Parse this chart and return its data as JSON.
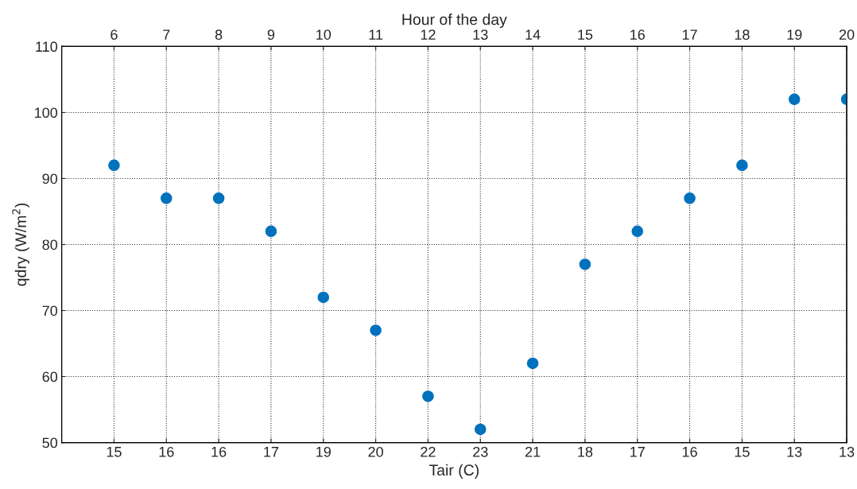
{
  "chart_data": {
    "type": "scatter",
    "xlabel": "Tair (C)",
    "x2label": "Hour of the day",
    "ylabel": "qdry (W/m$^{2}$)",
    "categories": [
      "15",
      "16",
      "16",
      "17",
      "19",
      "20",
      "22",
      "23",
      "21",
      "18",
      "17",
      "16",
      "15",
      "13",
      "13"
    ],
    "series": [
      {
        "color": "#0072bd",
        "values": [
          92,
          87,
          87,
          82,
          72,
          67,
          57,
          52,
          62,
          77,
          82,
          87,
          92,
          102,
          102
        ]
      }
    ],
    "x2lim": [
      5,
      20
    ],
    "x2ticks": [
      6,
      7,
      8,
      9,
      10,
      11,
      12,
      13,
      14,
      15,
      16,
      17,
      18,
      19,
      20
    ],
    "ylim": [
      50,
      110
    ],
    "yticks": [
      50,
      60,
      70,
      80,
      90,
      100,
      110
    ],
    "grid": true,
    "marker": "circle"
  }
}
